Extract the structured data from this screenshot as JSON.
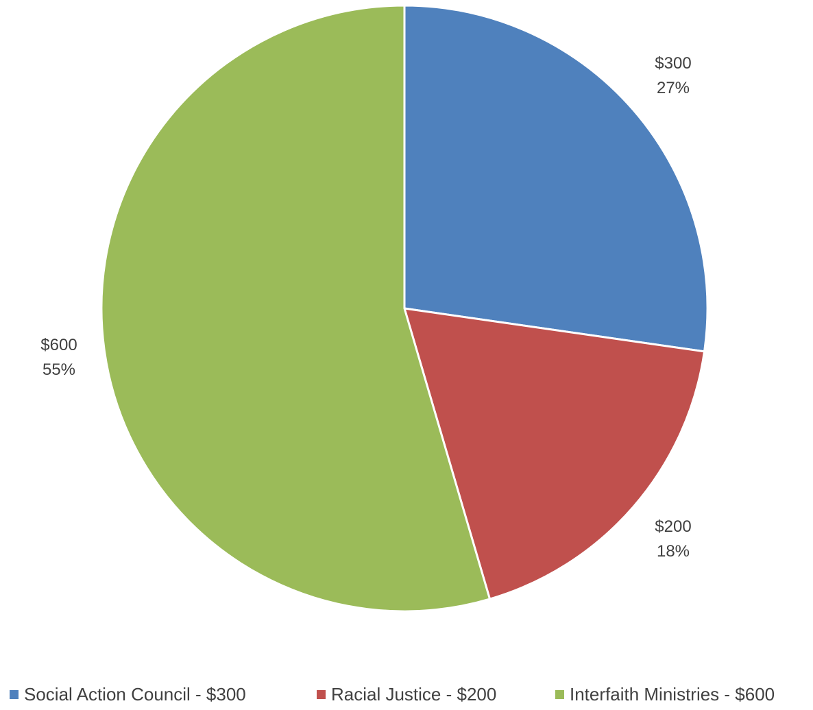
{
  "chart_data": {
    "type": "pie",
    "title": "",
    "start_angle_deg": 0,
    "direction": "clockwise",
    "legend_position": "bottom",
    "slices": [
      {
        "name": "Social Action Council - $300",
        "value": 300,
        "value_label": "$300",
        "percent_label": "27%",
        "color": "#4F81BD"
      },
      {
        "name": "Racial Justice - $200",
        "value": 200,
        "value_label": "$200",
        "percent_label": "18%",
        "color": "#C0504D"
      },
      {
        "name": "Interfaith Ministries - $600",
        "value": 600,
        "value_label": "$600",
        "percent_label": "55%",
        "color": "#9BBB59"
      }
    ]
  }
}
